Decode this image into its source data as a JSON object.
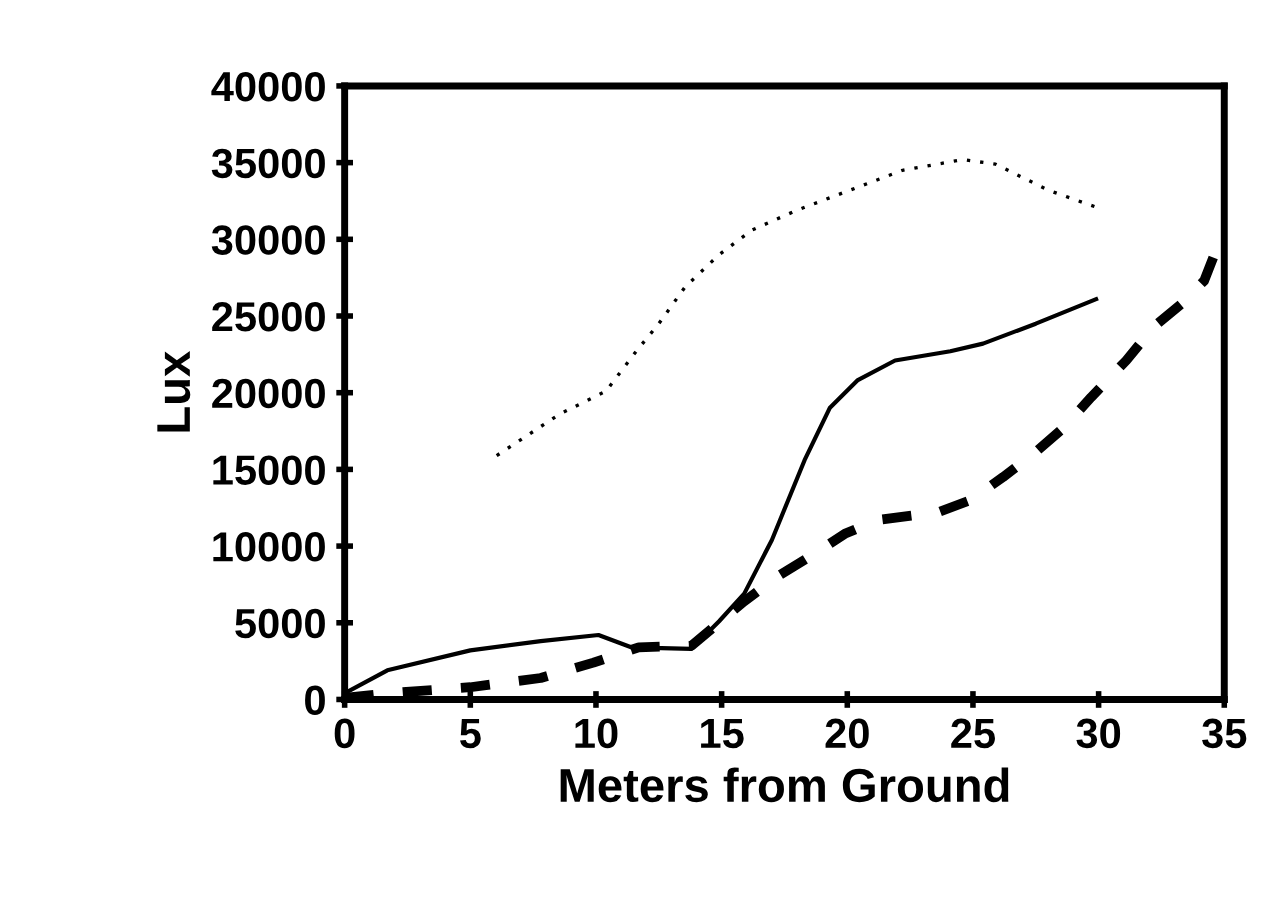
{
  "chart_data": {
    "type": "line",
    "xlabel": "Meters from Ground",
    "ylabel": "Lux",
    "xlim": [
      0,
      35
    ],
    "ylim": [
      0,
      40000
    ],
    "xticks": [
      0,
      5,
      10,
      15,
      20,
      25,
      30,
      35
    ],
    "yticks": [
      0,
      5000,
      10000,
      15000,
      20000,
      25000,
      30000,
      35000,
      40000
    ],
    "marker": "none",
    "series": [
      {
        "color": "#000000",
        "line_style": "dotted",
        "x": [
          6.05,
          8.55,
          10.4,
          11.6,
          12.5,
          13.55,
          14.9,
          16.2,
          18.0,
          20.1,
          22.2,
          24.6,
          25.9,
          28.0,
          29.9
        ],
        "values": [
          15900,
          18600,
          20100,
          22700,
          24500,
          26900,
          29000,
          30600,
          31900,
          33200,
          34500,
          35200,
          34900,
          33200,
          32100
        ]
      },
      {
        "color": "#000000",
        "line_style": "solid",
        "x": [
          0,
          1.7,
          5,
          7.8,
          10.1,
          11.4,
          13.8,
          14.9,
          15.9,
          17,
          18.3,
          19.3,
          20.4,
          21.9,
          24.1,
          25.4,
          27.5,
          29.9
        ],
        "values": [
          400,
          1900,
          3200,
          3800,
          4200,
          3400,
          3300,
          5100,
          6900,
          10400,
          15600,
          19000,
          20800,
          22100,
          22700,
          23200,
          24500,
          26100
        ]
      },
      {
        "color": "#000000",
        "line_style": "dashed",
        "x": [
          0,
          1.7,
          5,
          7.8,
          9.9,
          11.7,
          13.8,
          15.9,
          17.2,
          18.5,
          19.9,
          21.2,
          23.6,
          24.9,
          26.2,
          27.4,
          28.6,
          29.7,
          31.1,
          32.2,
          33.3,
          34.2,
          34.7
        ],
        "values": [
          100,
          400,
          800,
          1400,
          2400,
          3400,
          3500,
          6400,
          8000,
          9300,
          10800,
          11700,
          12200,
          13000,
          14500,
          16000,
          17700,
          19700,
          22100,
          24300,
          25800,
          27300,
          29400
        ]
      }
    ]
  }
}
